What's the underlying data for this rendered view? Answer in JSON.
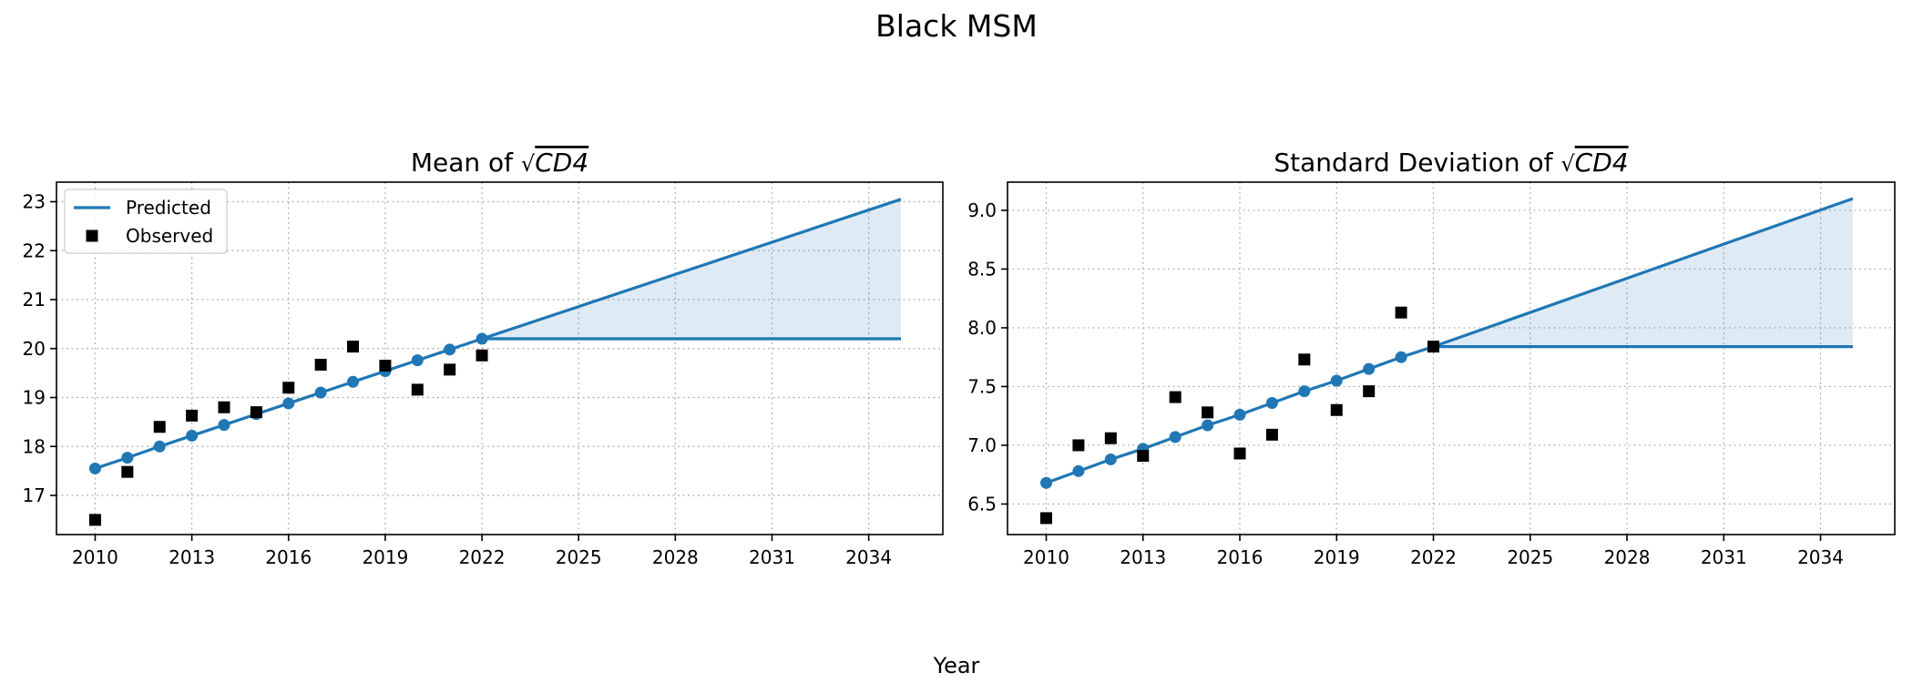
{
  "figure": {
    "title": "Black MSM",
    "xlabel": "Year"
  },
  "colors": {
    "predicted": "#1f77b4",
    "band": "#1f77b4",
    "observed": "#000000"
  },
  "chart_data": [
    {
      "type": "line",
      "title_prefix": "Mean of",
      "title_math": "CD4",
      "title_sqrt": true,
      "xlim": [
        2008.8,
        2036.3
      ],
      "ylim": [
        16.2,
        23.4
      ],
      "xticks": [
        2010,
        2013,
        2016,
        2019,
        2022,
        2025,
        2028,
        2031,
        2034
      ],
      "yticks": [
        17,
        18,
        19,
        20,
        21,
        22,
        23
      ],
      "grid": true,
      "legend": {
        "placement": "upper-left",
        "entries": [
          {
            "label": "Predicted",
            "kind": "line"
          },
          {
            "label": "Observed",
            "kind": "square"
          }
        ]
      },
      "series": [
        {
          "name": "Predicted",
          "x": [
            2010,
            2011,
            2012,
            2013,
            2014,
            2015,
            2016,
            2017,
            2018,
            2019,
            2020,
            2021,
            2022
          ],
          "y": [
            17.55,
            17.77,
            18.0,
            18.22,
            18.44,
            18.66,
            18.88,
            19.1,
            19.32,
            19.54,
            19.76,
            19.98,
            20.2
          ]
        },
        {
          "name": "Observed",
          "x": [
            2010,
            2011,
            2012,
            2013,
            2014,
            2015,
            2016,
            2017,
            2018,
            2019,
            2020,
            2021,
            2022
          ],
          "y": [
            16.5,
            17.48,
            18.4,
            18.63,
            18.8,
            18.7,
            19.2,
            19.67,
            20.04,
            19.65,
            19.16,
            19.57,
            19.86
          ]
        }
      ],
      "projection": {
        "x": [
          2022,
          2035
        ],
        "upper": [
          20.2,
          23.05
        ],
        "lower": [
          20.2,
          20.2
        ]
      }
    },
    {
      "type": "line",
      "title_prefix": "Standard Deviation of",
      "title_math": "CD4",
      "title_sqrt": true,
      "xlim": [
        2008.8,
        2036.3
      ],
      "ylim": [
        6.24,
        9.24
      ],
      "xticks": [
        2010,
        2013,
        2016,
        2019,
        2022,
        2025,
        2028,
        2031,
        2034
      ],
      "yticks": [
        6.5,
        7.0,
        7.5,
        8.0,
        8.5,
        9.0
      ],
      "ytick_labels": [
        "6.5",
        "7.0",
        "7.5",
        "8.0",
        "8.5",
        "9.0"
      ],
      "grid": true,
      "series": [
        {
          "name": "Predicted",
          "x": [
            2010,
            2011,
            2012,
            2013,
            2014,
            2015,
            2016,
            2017,
            2018,
            2019,
            2020,
            2021,
            2022
          ],
          "y": [
            6.68,
            6.78,
            6.88,
            6.97,
            7.07,
            7.17,
            7.26,
            7.36,
            7.46,
            7.55,
            7.65,
            7.75,
            7.84
          ]
        },
        {
          "name": "Observed",
          "x": [
            2010,
            2011,
            2012,
            2013,
            2014,
            2015,
            2016,
            2017,
            2018,
            2019,
            2020,
            2021,
            2022
          ],
          "y": [
            6.38,
            7.0,
            7.06,
            6.91,
            7.41,
            7.28,
            6.93,
            7.09,
            7.73,
            7.3,
            7.46,
            8.13,
            7.84
          ]
        }
      ],
      "projection": {
        "x": [
          2022,
          2035
        ],
        "upper": [
          7.84,
          9.1
        ],
        "lower": [
          7.84,
          7.84
        ]
      }
    }
  ]
}
